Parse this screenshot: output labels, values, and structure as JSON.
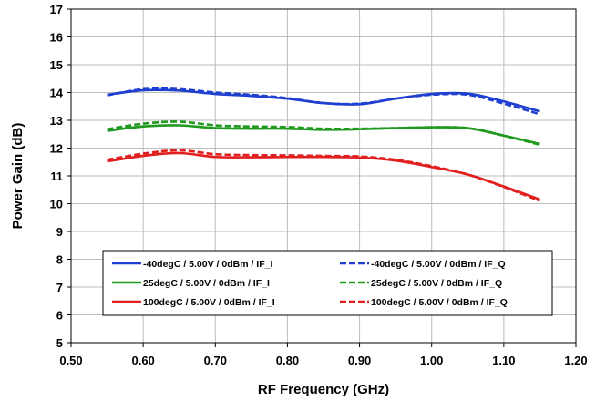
{
  "chart_data": {
    "type": "line",
    "xlabel": "RF Frequency (GHz)",
    "ylabel": "Power Gain (dB)",
    "xlim": [
      0.5,
      1.2
    ],
    "ylim": [
      5,
      17
    ],
    "x_ticks": [
      "0.50",
      "0.60",
      "0.70",
      "0.80",
      "0.90",
      "1.00",
      "1.10",
      "1.20"
    ],
    "y_ticks": [
      "5",
      "6",
      "7",
      "8",
      "9",
      "10",
      "11",
      "12",
      "13",
      "14",
      "15",
      "16",
      "17"
    ],
    "grid": true,
    "legend_position": "bottom-center",
    "x": [
      0.55,
      0.6,
      0.65,
      0.7,
      0.75,
      0.8,
      0.85,
      0.9,
      0.95,
      1.0,
      1.05,
      1.1,
      1.15
    ],
    "series": [
      {
        "name": "-40degC /  5.00V /  0dBm /  IF_I",
        "color": "#1f3fd0",
        "dash": "solid",
        "values": [
          13.92,
          14.08,
          14.07,
          13.95,
          13.88,
          13.78,
          13.62,
          13.58,
          13.78,
          13.95,
          13.96,
          13.68,
          13.32
        ]
      },
      {
        "name": "-40degC /  5.00V /  0dBm /  IF_Q",
        "color": "#1f3fd0",
        "dash": "dashed",
        "values": [
          13.9,
          14.12,
          14.12,
          14.0,
          13.92,
          13.8,
          13.62,
          13.6,
          13.78,
          13.92,
          13.92,
          13.6,
          13.22
        ]
      },
      {
        "name": "25degC /  5.00V /  0dBm /  IF_I",
        "color": "#1f9a1f",
        "dash": "solid",
        "values": [
          12.62,
          12.78,
          12.82,
          12.72,
          12.7,
          12.7,
          12.66,
          12.68,
          12.72,
          12.75,
          12.72,
          12.45,
          12.15
        ]
      },
      {
        "name": "25degC /  5.00V /  0dBm /  IF_Q",
        "color": "#1f9a1f",
        "dash": "dashed",
        "values": [
          12.68,
          12.88,
          12.95,
          12.82,
          12.78,
          12.76,
          12.7,
          12.7,
          12.72,
          12.75,
          12.72,
          12.45,
          12.12
        ]
      },
      {
        "name": "100degC /  5.00V /  0dBm /  IF_I",
        "color": "#e21f1f",
        "dash": "solid",
        "values": [
          11.52,
          11.72,
          11.82,
          11.68,
          11.67,
          11.68,
          11.68,
          11.66,
          11.55,
          11.32,
          11.05,
          10.62,
          10.15
        ]
      },
      {
        "name": "100degC /  5.00V /  0dBm /  IF_Q",
        "color": "#e21f1f",
        "dash": "dashed",
        "values": [
          11.58,
          11.8,
          11.92,
          11.78,
          11.75,
          11.74,
          11.72,
          11.7,
          11.58,
          11.35,
          11.05,
          10.6,
          10.1
        ]
      }
    ]
  }
}
